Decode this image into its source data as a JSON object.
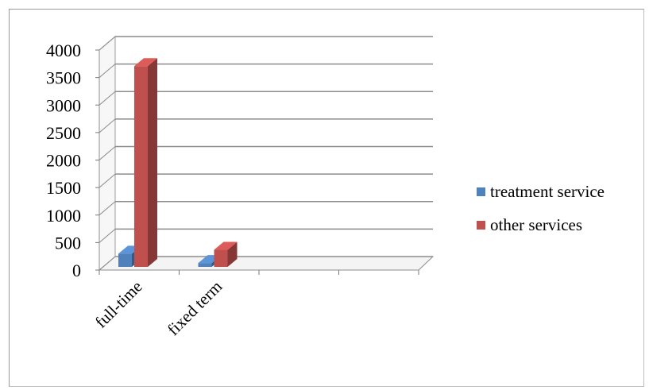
{
  "chart_data": {
    "type": "bar",
    "categories": [
      "full-time",
      "fixed term"
    ],
    "series": [
      {
        "name": "treatment service",
        "values": [
          240,
          70
        ]
      },
      {
        "name": "other services",
        "values": [
          3650,
          310
        ]
      }
    ],
    "colors": {
      "treatment service": "#4f81bd",
      "other services": "#c0504d"
    },
    "ylim": [
      0,
      4000
    ],
    "yticks": [
      "0",
      "500",
      "1000",
      "1500",
      "2000",
      "2500",
      "3000",
      "3500",
      "4000"
    ],
    "legend_position": "right",
    "grid": true,
    "style": "3d"
  }
}
